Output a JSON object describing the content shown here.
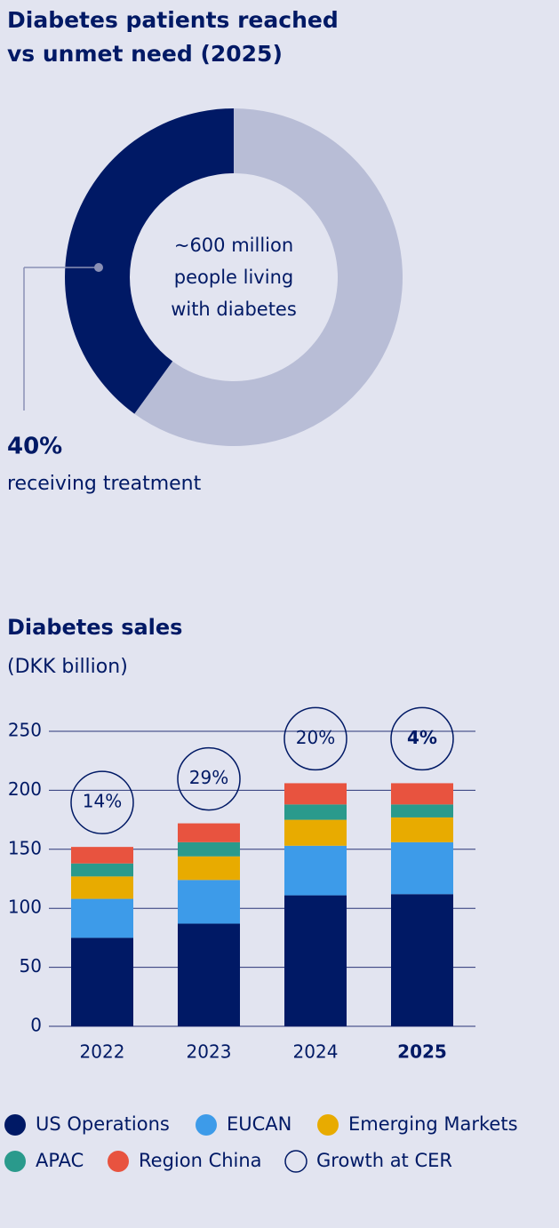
{
  "chart_data": [
    {
      "type": "pie",
      "title": "Diabetes patients reached vs unmet need (2025)",
      "center_label": "~600 million people living with diabetes",
      "categories": [
        "receiving treatment",
        null
      ],
      "values": [
        40,
        60
      ],
      "value_labels": [
        "40%",
        null
      ],
      "colors": [
        "#001965",
        "#b8bdd6"
      ]
    },
    {
      "type": "bar",
      "stacked": true,
      "title": "Diabetes sales",
      "subtitle": "(DKK billion)",
      "categories": [
        "2022",
        "2023",
        "2024",
        "2025"
      ],
      "series": [
        {
          "name": "US Operations",
          "color": "#001965",
          "values": [
            75,
            87,
            111,
            112
          ]
        },
        {
          "name": "EUCAN",
          "color": "#3d9be9",
          "values": [
            33,
            37,
            42,
            44
          ]
        },
        {
          "name": "Emerging Markets",
          "color": "#e8ab00",
          "values": [
            19,
            20,
            22,
            21
          ]
        },
        {
          "name": "APAC",
          "color": "#2a9a8c",
          "values": [
            11,
            12,
            13,
            11
          ]
        },
        {
          "name": "Region China",
          "color": "#e8533f",
          "values": [
            14,
            16,
            18,
            18
          ]
        }
      ],
      "growth": {
        "name": "Growth at CER",
        "values": [
          14,
          29,
          20,
          4
        ],
        "value_labels": [
          "14%",
          "29%",
          "20%",
          "4%"
        ]
      },
      "ylim": [
        0,
        250
      ],
      "yticks": [
        0,
        50,
        100,
        150,
        200,
        250
      ],
      "grid": true
    }
  ]
}
